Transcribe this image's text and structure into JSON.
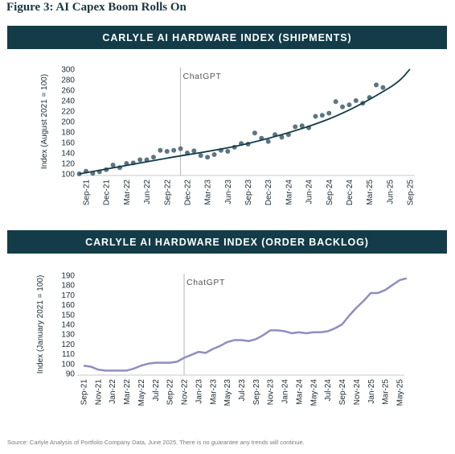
{
  "figure_title": "Figure 3: AI Capex Boom Rolls On",
  "source_note": "Source: Carlyle Analysis of Portfolio Company Data, June 2025. There is no guarantee any trends will continue.",
  "colors": {
    "banner": "#133c48",
    "series": "#133c48",
    "dots": "#5d7582",
    "backlog_line": "#8e8ec0",
    "annotation_line": "#b5b5b5"
  },
  "chart_data": [
    {
      "type": "scatter",
      "title": "CARLYLE AI HARDWARE INDEX (SHIPMENTS)",
      "ylabel": "Index (August 2021 = 100)",
      "ylim": [
        100,
        300
      ],
      "yticks": [
        100,
        120,
        140,
        160,
        180,
        200,
        220,
        240,
        260,
        280,
        300
      ],
      "x_ticks": [
        "Sep-21",
        "Dec-21",
        "Mar-22",
        "Jun-22",
        "Sep-22",
        "Dec-22",
        "Mar-23",
        "Jun-23",
        "Sep-23",
        "Dec-23",
        "Mar-24",
        "Jun-24",
        "Sep-24",
        "Dec-24",
        "Mar-25",
        "Jun-25",
        "Sep-25"
      ],
      "annotation": {
        "label": "ChatGPT",
        "x": "Nov-22"
      },
      "series": [
        {
          "kind": "points",
          "x": [
            "Aug-21",
            "Sep-21",
            "Oct-21",
            "Nov-21",
            "Dec-21",
            "Jan-22",
            "Feb-22",
            "Mar-22",
            "Apr-22",
            "May-22",
            "Jun-22",
            "Jul-22",
            "Aug-22",
            "Sep-22",
            "Oct-22",
            "Nov-22",
            "Dec-22",
            "Jan-23",
            "Feb-23",
            "Mar-23",
            "Apr-23",
            "May-23",
            "Jun-23",
            "Jul-23",
            "Aug-23",
            "Sep-23",
            "Oct-23",
            "Nov-23",
            "Dec-23",
            "Jan-24",
            "Feb-24",
            "Mar-24",
            "Apr-24",
            "May-24",
            "Jun-24",
            "Jul-24",
            "Aug-24",
            "Sep-24",
            "Oct-24",
            "Nov-24",
            "Dec-24",
            "Jan-25",
            "Feb-25",
            "Mar-25",
            "Apr-25",
            "May-25"
          ],
          "y": [
            100,
            105,
            101,
            104,
            108,
            117,
            112,
            120,
            121,
            127,
            127,
            132,
            145,
            143,
            145,
            148,
            140,
            144,
            135,
            132,
            137,
            145,
            143,
            151,
            158,
            157,
            178,
            168,
            162,
            175,
            170,
            175,
            190,
            192,
            188,
            210,
            212,
            216,
            238,
            228,
            232,
            240,
            235,
            246,
            270,
            265
          ]
        },
        {
          "kind": "trend",
          "x": [
            "Aug-21",
            "Sep-22",
            "Sep-23",
            "Sep-24",
            "Jun-25",
            "Sep-25"
          ],
          "y": [
            100,
            130,
            158,
            205,
            265,
            300
          ]
        }
      ]
    },
    {
      "type": "line",
      "title": "CARLYLE AI HARDWARE INDEX (ORDER BACKLOG)",
      "ylabel": "Index (January 2021 = 100)",
      "ylim": [
        90,
        190
      ],
      "yticks": [
        90,
        100,
        110,
        120,
        130,
        140,
        150,
        160,
        170,
        180,
        190
      ],
      "x_ticks": [
        "Sep-21",
        "Nov-21",
        "Jan-22",
        "Mar-22",
        "May-22",
        "Jul-22",
        "Sep-22",
        "Nov-22",
        "Jan-23",
        "Mar-23",
        "May-23",
        "Jul-23",
        "Sep-23",
        "Nov-23",
        "Jan-24",
        "Mar-24",
        "May-24",
        "Jul-24",
        "Sep-24",
        "Nov-24",
        "Jan-25",
        "Mar-25",
        "May-25"
      ],
      "annotation": {
        "label": "ChatGPT",
        "x": "Nov-22"
      },
      "series": [
        {
          "x": [
            "Sep-21",
            "Oct-21",
            "Nov-21",
            "Dec-21",
            "Jan-22",
            "Feb-22",
            "Mar-22",
            "Apr-22",
            "May-22",
            "Jun-22",
            "Jul-22",
            "Aug-22",
            "Sep-22",
            "Oct-22",
            "Nov-22",
            "Dec-22",
            "Jan-23",
            "Feb-23",
            "Mar-23",
            "Apr-23",
            "May-23",
            "Jun-23",
            "Jul-23",
            "Aug-23",
            "Sep-23",
            "Oct-23",
            "Nov-23",
            "Dec-23",
            "Jan-24",
            "Feb-24",
            "Mar-24",
            "Apr-24",
            "May-24",
            "Jun-24",
            "Jul-24",
            "Aug-24",
            "Sep-24",
            "Oct-24",
            "Nov-24",
            "Dec-24",
            "Jan-25",
            "Feb-25",
            "Mar-25",
            "Apr-25",
            "May-25",
            "Jun-25"
          ],
          "y": [
            98,
            97,
            94,
            93,
            93,
            93,
            93,
            95,
            98,
            100,
            101,
            101,
            101,
            102,
            106,
            109,
            112,
            111,
            115,
            118,
            122,
            124,
            124,
            123,
            125,
            129,
            134,
            134,
            133,
            131,
            132,
            131,
            132,
            132,
            133,
            136,
            140,
            149,
            157,
            164,
            172,
            172,
            175,
            180,
            185,
            187
          ]
        }
      ]
    }
  ]
}
